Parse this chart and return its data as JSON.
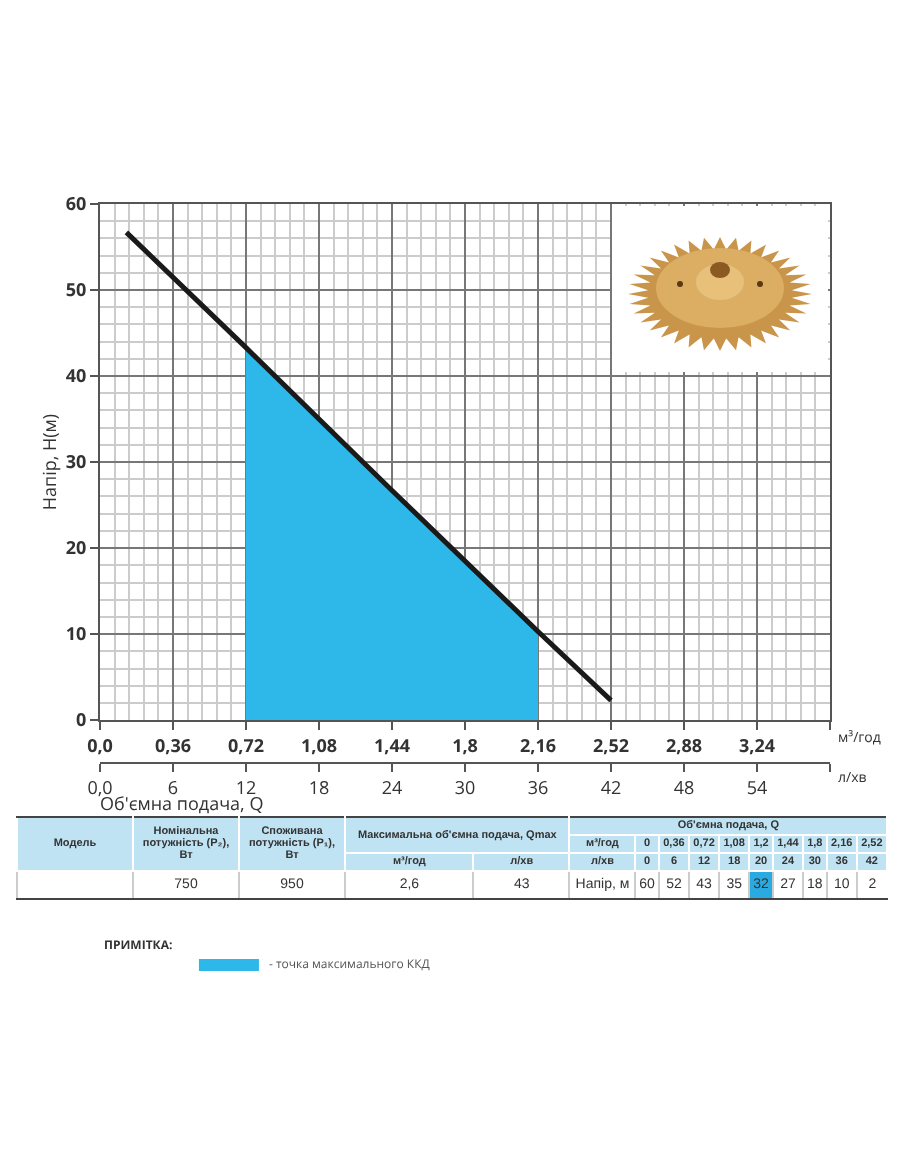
{
  "chart_data": [
    {
      "type": "line",
      "ylabel": "Напір, H(м)",
      "xlabel": "Об'ємна подача, Q",
      "annotations": [
        "м³/год",
        "л/хв"
      ],
      "legend_title": "ПРИМІТКА:",
      "legend": "bottom left",
      "grid": true,
      "xlim": [
        0,
        3.6
      ],
      "xticks": [
        {
          "value": 0,
          "label": "0,0"
        },
        {
          "value": 0.36,
          "label": "0,36"
        },
        {
          "value": 0.72,
          "label": "0,72"
        },
        {
          "value": 1.08,
          "label": "1,08"
        },
        {
          "value": 1.44,
          "label": "1,44"
        },
        {
          "value": 1.8,
          "label": "1,8"
        },
        {
          "value": 2.16,
          "label": "2,16"
        },
        {
          "value": 2.52,
          "label": "2,52"
        },
        {
          "value": 2.88,
          "label": "2,88"
        },
        {
          "value": 3.24,
          "label": "3,24"
        },
        {
          "value": 3.6,
          "label": null
        }
      ],
      "x2lim": [
        0,
        60
      ],
      "x2ticks": [
        {
          "value": 0,
          "label": "0,0"
        },
        6,
        12,
        18,
        24,
        30,
        36,
        42,
        48,
        54,
        {
          "value": 60,
          "label": null
        }
      ],
      "ylim": [
        0,
        60
      ],
      "yticks": [
        0,
        10,
        20,
        30,
        40,
        50,
        60
      ],
      "series": [
        {
          "type": "area",
          "name": "- точка максимального ККД",
          "color": "#2eb8ea",
          "x": [
            0.72,
            1.08,
            1.44,
            1.8,
            2.16
          ],
          "values": [
            43.3,
            34.9,
            26.7,
            18.5,
            10.3
          ]
        },
        {
          "type": "line",
          "color": "#1a1a1a",
          "x": [
            0.13,
            0.72,
            1.44,
            2.16,
            2.52
          ],
          "values": [
            56.7,
            43.3,
            26.7,
            10.3,
            2.3
          ]
        }
      ]
    },
    {
      "type": "other",
      "annotations": [
        "Модель",
        "Номінальна потужність (P₂), Вт",
        "Споживана потужність (P₁), Вт",
        "Максимальна об'ємна подача, Qmax",
        "Об'ємна подача, Q",
        "м³/год",
        "м³/год",
        "л/хв",
        "л/хв"
      ],
      "cell_labels": [
        [
          "0",
          "0,36",
          "0,72",
          "1,08",
          "1,2",
          "1,44",
          "1,8",
          "2,16",
          "2,52"
        ],
        [
          "0",
          "6",
          "12",
          "18",
          "20",
          "24",
          "30",
          "36",
          "42"
        ],
        [
          null,
          "750",
          "950",
          "2,6",
          "43",
          "Напір, м",
          "60",
          "52",
          "43",
          "35",
          "32",
          "27",
          "18",
          "10",
          "2"
        ]
      ],
      "colors": [
        null,
        null,
        null,
        null,
        null,
        null,
        null,
        null,
        null,
        null,
        "#29abe2",
        null,
        null,
        null,
        null
      ]
    }
  ]
}
